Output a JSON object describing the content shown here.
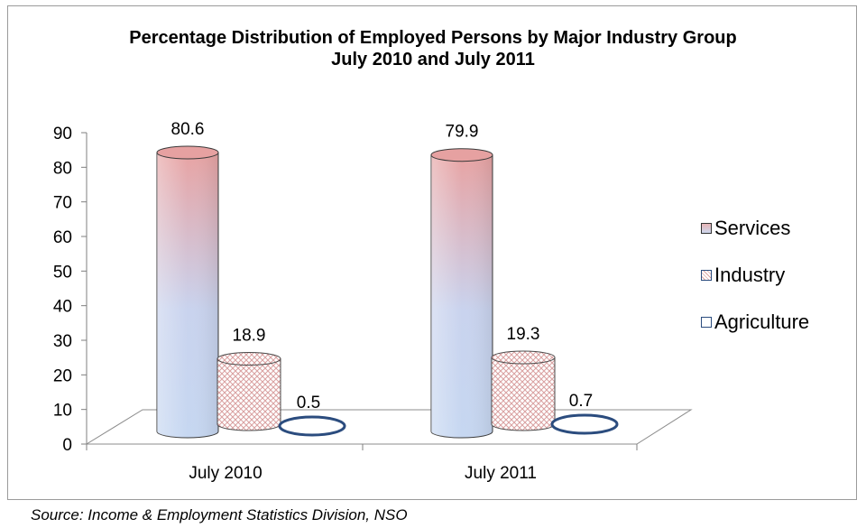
{
  "chart_data": {
    "type": "bar",
    "title": "Percentage Distribution of Employed Persons by Major Industry Group",
    "subtitle": "July 2010 and July 2011",
    "categories": [
      "July 2010",
      "July 2011"
    ],
    "series": [
      {
        "name": "Services",
        "values": [
          80.6,
          79.9
        ],
        "labels": [
          "80.6",
          "79.9"
        ]
      },
      {
        "name": "Industry",
        "values": [
          18.9,
          19.3
        ],
        "labels": [
          "18.9",
          "19.3"
        ]
      },
      {
        "name": "Agriculture",
        "values": [
          0.5,
          0.7
        ],
        "labels": [
          "0.5",
          "0.7"
        ]
      }
    ],
    "ylim": [
      0,
      90
    ],
    "yticks": [
      "0",
      "10",
      "20",
      "30",
      "40",
      "50",
      "60",
      "70",
      "80",
      "90"
    ],
    "grid": false,
    "legend": "right",
    "style": "3d-cylinder",
    "colors": {
      "services_top": "#e8a3a3",
      "services_bottom": "#c6d7f1",
      "industry_pattern": "#d9a0a0",
      "agriculture_outline": "#2b4c7e",
      "axis": "#7f7f7f"
    }
  },
  "source_note": "Source: Income & Employment Statistics Division, NSO"
}
